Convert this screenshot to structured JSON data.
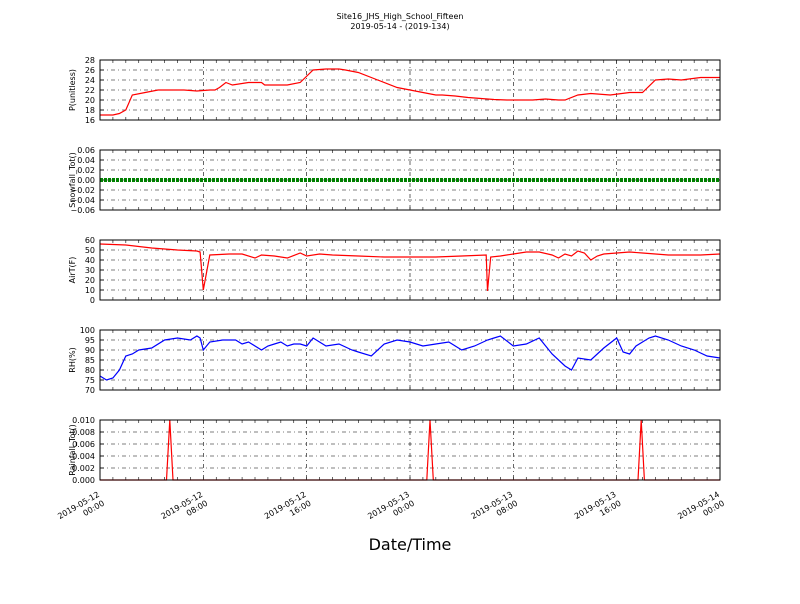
{
  "figure": {
    "title": "Site16_JHS_High_School_Fifteen",
    "subtitle": "2019-05-14 - (2019-134)",
    "xlabel": "Date/Time",
    "x_ticks": [
      {
        "line1": "2019-05-12",
        "line2": "00:00"
      },
      {
        "line1": "2019-05-12",
        "line2": "08:00"
      },
      {
        "line1": "2019-05-12",
        "line2": "16:00"
      },
      {
        "line1": "2019-05-13",
        "line2": "00:00"
      },
      {
        "line1": "2019-05-13",
        "line2": "08:00"
      },
      {
        "line1": "2019-05-13",
        "line2": "16:00"
      },
      {
        "line1": "2019-05-14",
        "line2": "00:00"
      }
    ],
    "colors": {
      "red": "#ff0000",
      "green": "#008000",
      "blue": "#0000ff"
    }
  },
  "chart_data": [
    {
      "type": "line",
      "ylabel": "P(unitless)",
      "ylim": [
        16,
        28
      ],
      "yticks": [
        "16",
        "18",
        "20",
        "22",
        "24",
        "26",
        "28"
      ],
      "grid": true,
      "series": [
        {
          "color": "#ff0000",
          "x_hours": [
            0,
            2,
            3,
            4,
            5,
            7,
            9,
            11,
            13,
            15,
            17,
            17.8,
            18.5,
            19.5,
            20.5,
            23,
            25,
            25.5,
            27,
            29,
            31,
            33,
            35,
            37,
            38,
            40,
            43,
            46,
            48,
            50,
            52,
            53,
            55,
            57,
            59,
            61,
            63,
            65,
            67,
            69,
            71,
            72,
            74,
            76,
            79,
            82,
            84,
            86,
            88,
            90,
            93,
            96
          ],
          "y": [
            17,
            17,
            17.3,
            18,
            21,
            21.5,
            22,
            22,
            22,
            21.8,
            22,
            22,
            22.5,
            23.5,
            23,
            23.5,
            23.5,
            23,
            23,
            23,
            23.5,
            26,
            26.2,
            26.2,
            26,
            25.5,
            24,
            22.5,
            22,
            21.5,
            21,
            21,
            20.8,
            20.5,
            20.3,
            20.1,
            20,
            20,
            20,
            20.2,
            20,
            20,
            21,
            21.3,
            21,
            21.5,
            21.5,
            24,
            24.2,
            24,
            24.5,
            24.5
          ]
        }
      ]
    },
    {
      "type": "line",
      "ylabel": "Snowfall_Tot()",
      "ylim": [
        -0.06,
        0.06
      ],
      "yticks": [
        "−0.06",
        "−0.04",
        "−0.02",
        "0.00",
        "0.02",
        "0.04",
        "0.06"
      ],
      "grid": true,
      "series": [
        {
          "color": "#008000",
          "x_hours": [
            0,
            96
          ],
          "y": [
            0,
            0
          ],
          "markers": true
        }
      ]
    },
    {
      "type": "line",
      "ylabel": "AirT(F)",
      "ylim": [
        0,
        60
      ],
      "yticks": [
        "0",
        "10",
        "20",
        "30",
        "40",
        "50",
        "60"
      ],
      "grid": true,
      "series": [
        {
          "color": "#ff0000",
          "x_hours": [
            0,
            4,
            8,
            12,
            15,
            15.5,
            16,
            17,
            20,
            22,
            24,
            25,
            27,
            29,
            31,
            32,
            34,
            36,
            40,
            44,
            48,
            52,
            56,
            59.8,
            60,
            60.5,
            62,
            64,
            66,
            68,
            70,
            71,
            72,
            73,
            74,
            75,
            76,
            77,
            78,
            80,
            82,
            84,
            86,
            88,
            90,
            93,
            96
          ],
          "y": [
            56,
            55,
            52,
            50,
            49,
            48,
            10,
            45,
            46,
            46,
            42,
            45,
            44,
            42,
            47,
            44,
            46,
            45,
            44,
            43,
            43,
            43,
            44,
            45,
            9,
            43,
            44,
            46,
            48,
            48,
            45,
            42,
            46,
            44,
            49,
            47,
            40,
            44,
            46,
            47,
            48,
            47,
            46,
            45,
            45,
            45,
            46
          ]
        }
      ]
    },
    {
      "type": "line",
      "ylabel": "RH(%)",
      "ylim": [
        70,
        100
      ],
      "yticks": [
        "70",
        "75",
        "80",
        "85",
        "90",
        "95",
        "100"
      ],
      "grid": true,
      "series": [
        {
          "color": "#0000ff",
          "x_hours": [
            0,
            1,
            2,
            3,
            4,
            5,
            6,
            8,
            10,
            12,
            14,
            15,
            15.5,
            16,
            17,
            19,
            21,
            22,
            23,
            24,
            25,
            26,
            27,
            28,
            29,
            30,
            31,
            32,
            33,
            35,
            37,
            39,
            40,
            42,
            44,
            46,
            48,
            50,
            52,
            54,
            56,
            58,
            60,
            61,
            62,
            64,
            66,
            68,
            70,
            72,
            73,
            74,
            76,
            78,
            80,
            81,
            82,
            83,
            84,
            85,
            86,
            88,
            90,
            92,
            94,
            96
          ],
          "y": [
            77,
            75,
            76,
            80,
            87,
            88,
            90,
            91,
            95,
            96,
            95,
            97,
            96,
            90,
            94,
            95,
            95,
            93,
            94,
            92,
            90,
            92,
            93,
            94,
            92,
            93,
            93,
            92,
            96,
            92,
            93,
            90,
            89,
            87,
            93,
            95,
            94,
            92,
            93,
            94,
            90,
            92,
            95,
            96,
            97,
            92,
            93,
            96,
            88,
            82,
            80,
            86,
            85,
            91,
            96,
            89,
            88,
            92,
            94,
            96,
            97,
            95,
            92,
            90,
            87,
            86
          ]
        }
      ]
    },
    {
      "type": "line",
      "ylabel": "Rainfall_Tot()",
      "ylim": [
        0,
        0.01
      ],
      "yticks": [
        "0.000",
        "0.002",
        "0.004",
        "0.006",
        "0.008",
        "0.010"
      ],
      "grid": true,
      "series": [
        {
          "color": "#ff0000",
          "x_hours": [
            0,
            10.3,
            10.8,
            11.3,
            50.6,
            51.1,
            51.6,
            83.3,
            83.8,
            84.3,
            96
          ],
          "y": [
            0,
            0,
            0.01,
            0,
            0,
            0.01,
            0,
            0,
            0.01,
            0,
            0
          ]
        }
      ]
    }
  ]
}
